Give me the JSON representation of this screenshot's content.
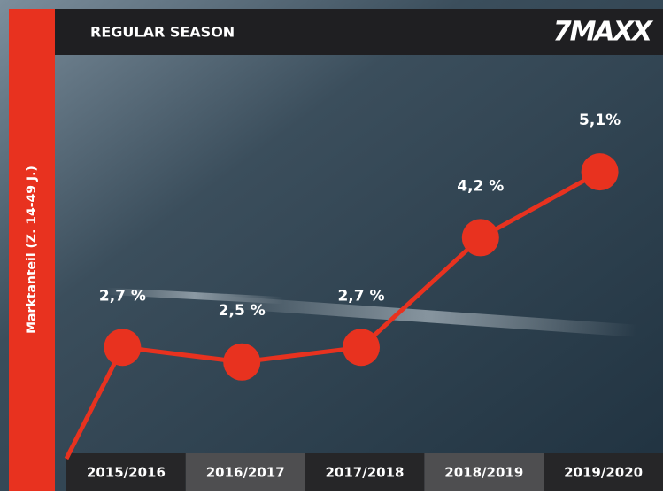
{
  "chart_data": {
    "type": "line",
    "title": "REGULAR SEASON",
    "logo": "7MAXX",
    "ylabel": "Marktanteil (Z. 14-49 J.)",
    "categories": [
      "2015/2016",
      "2016/2017",
      "2017/2018",
      "2018/2019",
      "2019/2020"
    ],
    "values": [
      2.7,
      2.5,
      2.7,
      4.2,
      5.1
    ],
    "value_labels": [
      "2,7 %",
      "2,5 %",
      "2,7 %",
      "4,2 %",
      "5,1%"
    ],
    "color": "#e8321f",
    "ylim": [
      1.25,
      6.7
    ]
  }
}
